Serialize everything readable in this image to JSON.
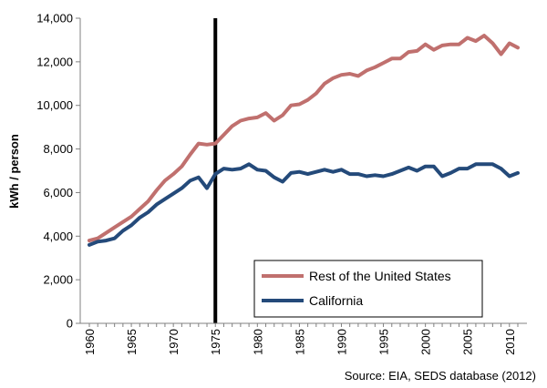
{
  "chart_data": {
    "type": "line",
    "ylabel": "kWh / person",
    "ylim": [
      0,
      14000
    ],
    "yticks": [
      0,
      2000,
      4000,
      6000,
      8000,
      10000,
      12000,
      14000
    ],
    "ytick_labels": [
      "0",
      "2,000",
      "4,000",
      "6,000",
      "8,000",
      "10,000",
      "12,000",
      "14,000"
    ],
    "xlim": [
      1960,
      2011
    ],
    "xticks": [
      1960,
      1965,
      1970,
      1975,
      1980,
      1985,
      1990,
      1995,
      2000,
      2005,
      2010
    ],
    "xtick_labels": [
      "1960",
      "1965",
      "1970",
      "1975",
      "1980",
      "1985",
      "1990",
      "1995",
      "2000",
      "2005",
      "2010"
    ],
    "grid": false,
    "vertical_marker": 1975,
    "legend": {
      "placement": "bottom-right"
    },
    "source": "Source: EIA, SEDS database (2012)",
    "x": [
      1960,
      1961,
      1962,
      1963,
      1964,
      1965,
      1966,
      1967,
      1968,
      1969,
      1970,
      1971,
      1972,
      1973,
      1974,
      1975,
      1976,
      1977,
      1978,
      1979,
      1980,
      1981,
      1982,
      1983,
      1984,
      1985,
      1986,
      1987,
      1988,
      1989,
      1990,
      1991,
      1992,
      1993,
      1994,
      1995,
      1996,
      1997,
      1998,
      1999,
      2000,
      2001,
      2002,
      2003,
      2004,
      2005,
      2006,
      2007,
      2008,
      2009,
      2010,
      2011
    ],
    "series": [
      {
        "name": "Rest of the United States",
        "color": "#c0706e",
        "values": [
          3800,
          3900,
          4150,
          4400,
          4650,
          4900,
          5250,
          5600,
          6100,
          6550,
          6850,
          7200,
          7750,
          8250,
          8200,
          8250,
          8650,
          9050,
          9300,
          9400,
          9450,
          9650,
          9300,
          9550,
          10000,
          10050,
          10250,
          10550,
          11000,
          11250,
          11400,
          11450,
          11350,
          11600,
          11750,
          11950,
          12150,
          12150,
          12450,
          12500,
          12800,
          12550,
          12750,
          12800,
          12800,
          13100,
          12950,
          13200,
          12850,
          12350,
          12850,
          12650
        ]
      },
      {
        "name": "California",
        "color": "#244a7a",
        "values": [
          3600,
          3750,
          3800,
          3900,
          4250,
          4500,
          4850,
          5100,
          5450,
          5700,
          5950,
          6200,
          6550,
          6700,
          6200,
          6850,
          7100,
          7050,
          7100,
          7300,
          7050,
          7000,
          6700,
          6500,
          6900,
          6950,
          6850,
          6950,
          7050,
          6950,
          7050,
          6850,
          6850,
          6750,
          6800,
          6750,
          6850,
          7000,
          7150,
          7000,
          7200,
          7200,
          6750,
          6900,
          7100,
          7100,
          7300,
          7300,
          7300,
          7100,
          6750,
          6900
        ]
      }
    ]
  }
}
